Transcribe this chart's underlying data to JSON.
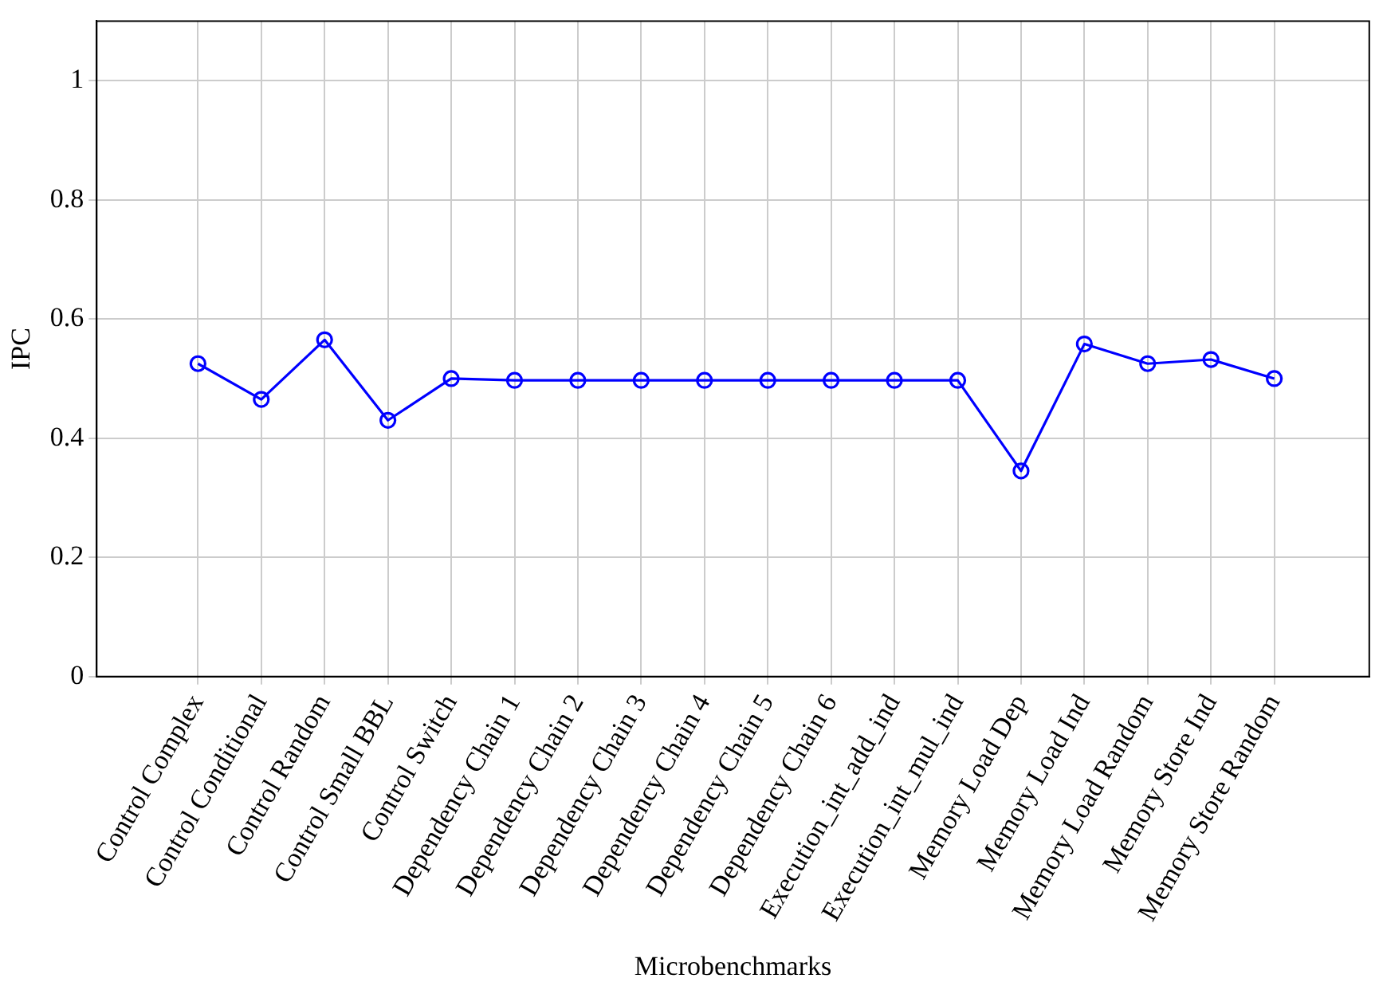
{
  "chart_data": {
    "type": "line",
    "xlabel": "Microbenchmarks",
    "ylabel": "IPC",
    "categories": [
      "Control Complex",
      "Control Conditional",
      "Control Random",
      "Control Small BBL",
      "Control Switch",
      "Dependency Chain 1",
      "Dependency Chain 2",
      "Dependency Chain 3",
      "Dependency Chain 4",
      "Dependency Chain 5",
      "Dependency Chain 6",
      "Execution_int_add_ind",
      "Execution_int_mul_ind",
      "Memory Load Dep",
      "Memory Load Ind",
      "Memory Load Random",
      "Memory Store Ind",
      "Memory Store Random"
    ],
    "series": [
      {
        "color": "#0000ff",
        "values": [
          0.525,
          0.465,
          0.565,
          0.43,
          0.5,
          0.497,
          0.497,
          0.497,
          0.497,
          0.497,
          0.497,
          0.497,
          0.497,
          0.345,
          0.558,
          0.525,
          0.532,
          0.5
        ]
      }
    ],
    "ylim": [
      0,
      1.1
    ],
    "yticks": [
      0,
      0.2,
      0.4,
      0.6,
      0.8,
      1
    ],
    "grid": true,
    "legend": false,
    "marker": "circle",
    "line_style": "solid"
  }
}
